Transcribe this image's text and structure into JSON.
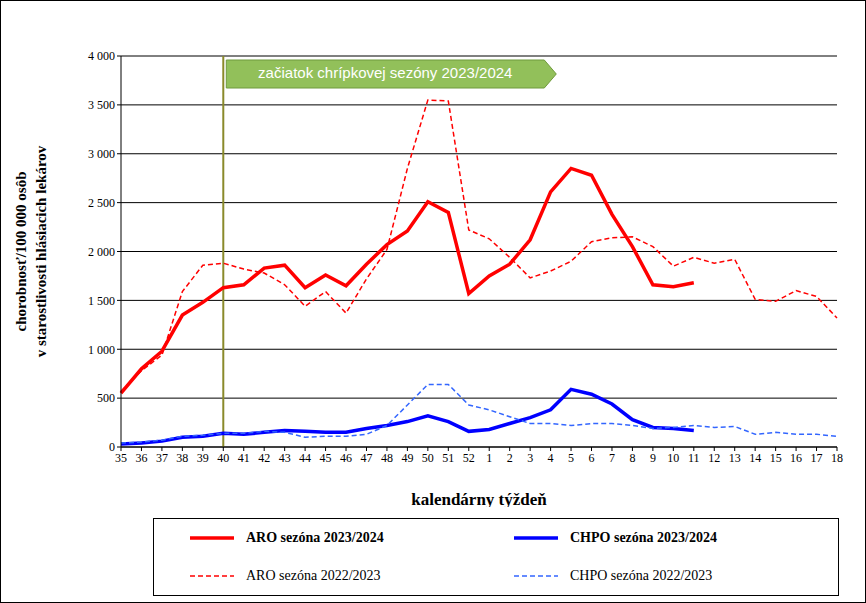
{
  "chart_data": {
    "type": "line",
    "x_label": "kalendárny týždeň",
    "y_label": [
      "chorobnosť/100 000 osôb",
      "v starostlivosti hlásiacich lekárov"
    ],
    "categories": [
      "35",
      "36",
      "37",
      "38",
      "39",
      "40",
      "41",
      "42",
      "43",
      "44",
      "45",
      "46",
      "47",
      "48",
      "49",
      "50",
      "51",
      "52",
      "1",
      "2",
      "3",
      "4",
      "5",
      "6",
      "7",
      "8",
      "9",
      "10",
      "11",
      "12",
      "13",
      "14",
      "15",
      "16",
      "17",
      "18"
    ],
    "series": [
      {
        "name": "ARO sezóna 2023/2024",
        "color": "#ff0000",
        "line_style": "solid",
        "values": [
          550,
          800,
          980,
          1350,
          1480,
          1630,
          1660,
          1830,
          1860,
          1630,
          1760,
          1650,
          1870,
          2070,
          2210,
          2510,
          2400,
          1570,
          1750,
          1870,
          2120,
          2610,
          2850,
          2780,
          2380,
          2050,
          1660,
          1640,
          1680,
          null,
          null,
          null,
          null,
          null,
          null,
          null
        ]
      },
      {
        "name": "CHPO sezóna 2023/2024",
        "color": "#0000ff",
        "line_style": "solid",
        "values": [
          30,
          40,
          60,
          100,
          110,
          140,
          130,
          150,
          170,
          160,
          150,
          150,
          190,
          220,
          260,
          320,
          260,
          160,
          180,
          240,
          300,
          380,
          590,
          540,
          440,
          280,
          200,
          190,
          170,
          null,
          null,
          null,
          null,
          null,
          null,
          null
        ]
      },
      {
        "name": "ARO sezóna 2022/2023",
        "color": "#ff0000",
        "line_style": "dashed",
        "values": [
          570,
          780,
          940,
          1590,
          1860,
          1880,
          1820,
          1780,
          1660,
          1440,
          1590,
          1370,
          1720,
          2020,
          2850,
          3550,
          3540,
          2220,
          2130,
          1940,
          1730,
          1800,
          1900,
          2100,
          2140,
          2150,
          2050,
          1850,
          1940,
          1880,
          1920,
          1510,
          1490,
          1600,
          1540,
          1320
        ]
      },
      {
        "name": "CHPO sezóna 2022/2023",
        "color": "#3366ff",
        "line_style": "dashed",
        "values": [
          40,
          50,
          70,
          110,
          120,
          140,
          140,
          160,
          150,
          100,
          110,
          110,
          130,
          220,
          430,
          640,
          640,
          430,
          380,
          310,
          240,
          240,
          220,
          240,
          240,
          220,
          190,
          200,
          220,
          200,
          210,
          130,
          150,
          130,
          130,
          110
        ]
      }
    ],
    "ylim": [
      0,
      4000
    ],
    "yticks": [
      0,
      500,
      {
        "value": 1000,
        "label": "1 000"
      },
      {
        "value": 1500,
        "label": "1 500"
      },
      {
        "value": 2000,
        "label": "2 000"
      },
      {
        "value": 2500,
        "label": "2 500"
      },
      {
        "value": 3000,
        "label": "3 000"
      },
      {
        "value": 3500,
        "label": "3 500"
      },
      {
        "value": 4000,
        "label": "4 000"
      }
    ],
    "grid": true,
    "legend": "bottom",
    "annotations": [
      {
        "x": "40",
        "text": "začiatok chrípkovej sezóny 2023/2024"
      }
    ]
  }
}
